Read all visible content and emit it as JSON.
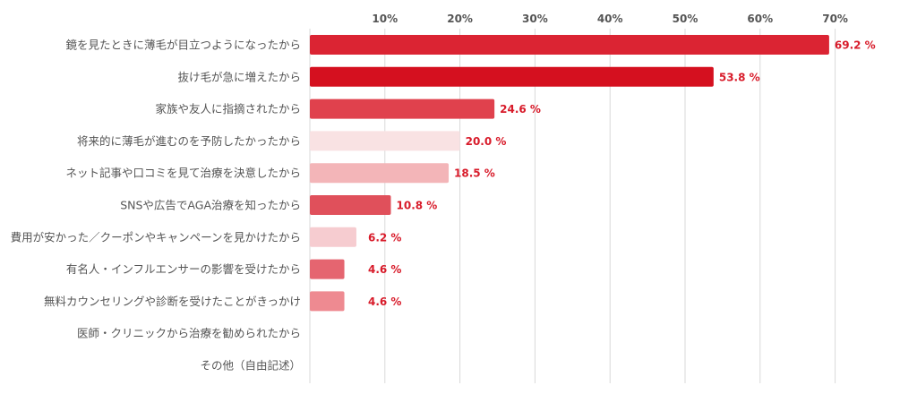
{
  "chart_data": {
    "type": "bar",
    "orientation": "horizontal",
    "title": "",
    "xlabel": "",
    "ylabel": "",
    "xlim": [
      0,
      70
    ],
    "x_ticks": [
      10,
      20,
      30,
      40,
      50,
      60,
      70
    ],
    "tick_format": "%",
    "value_suffix": " %",
    "grid": true,
    "categories": [
      "鏡を見たときに薄毛が目立つようになったから",
      "抜け毛が急に増えたから",
      "家族や友人に指摘されたから",
      "将来的に薄毛が進むのを予防したかったから",
      "ネット記事や口コミを見て治療を決意したから",
      "SNSや広告でAGA治療を知ったから",
      "費用が安かった／クーポンやキャンペーンを見かけたから",
      "有名人・インフルエンサーの影響を受けたから",
      "無料カウンセリングや診断を受けたことがきっかけ",
      "医師・クリニックから治療を勧められたから",
      "その他（自由記述）"
    ],
    "values": [
      69.2,
      53.8,
      24.6,
      20.0,
      18.5,
      10.8,
      6.2,
      4.6,
      4.6,
      null,
      null
    ],
    "value_labels": [
      "69.2 %",
      "53.8 %",
      "24.6 %",
      "20.0 %",
      "18.5 %",
      "10.8 %",
      "6.2 %",
      "4.6 %",
      "4.6 %",
      "",
      ""
    ],
    "bar_colors": [
      "#db2433",
      "#d5101f",
      "#e0414d",
      "#f9e2e3",
      "#f3b5b8",
      "#e0505b",
      "#f6ccd0",
      "#e56570",
      "#ee8a91",
      "#ffffff",
      "#ffffff"
    ],
    "label_color": "#d81b2a",
    "grid_color": "#d9d9d9"
  }
}
